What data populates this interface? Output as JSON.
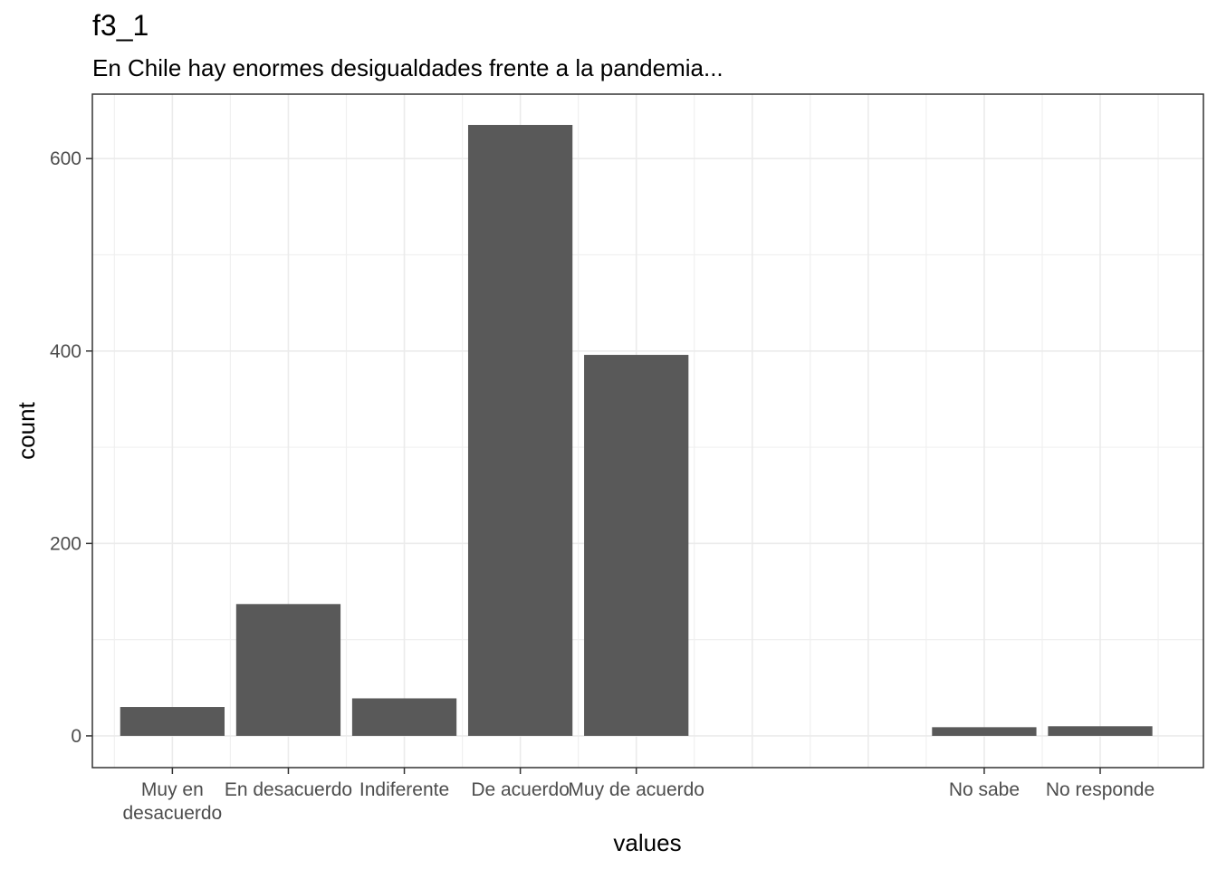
{
  "chart_data": {
    "type": "bar",
    "title": "f3_1",
    "subtitle": "En Chile hay enormes desigualdades frente a la pandemia...",
    "xlabel": "values",
    "ylabel": "count",
    "categories": [
      {
        "label": [
          "Muy en",
          "desacuerdo"
        ],
        "x": 1
      },
      {
        "label": [
          "En desacuerdo"
        ],
        "x": 2
      },
      {
        "label": [
          "Indiferente"
        ],
        "x": 3
      },
      {
        "label": [
          "De acuerdo"
        ],
        "x": 4
      },
      {
        "label": [
          "Muy de acuerdo"
        ],
        "x": 5
      },
      {
        "label": [
          "No sabe"
        ],
        "x": 8
      },
      {
        "label": [
          "No responde"
        ],
        "x": 9
      }
    ],
    "values": [
      30,
      137,
      39,
      635,
      396,
      9,
      10
    ],
    "ylim": [
      -33,
      667
    ],
    "xlim": [
      0.31,
      9.89
    ],
    "yticks": [
      0,
      200,
      400,
      600
    ],
    "grid": true,
    "bar_color": "#595959"
  }
}
